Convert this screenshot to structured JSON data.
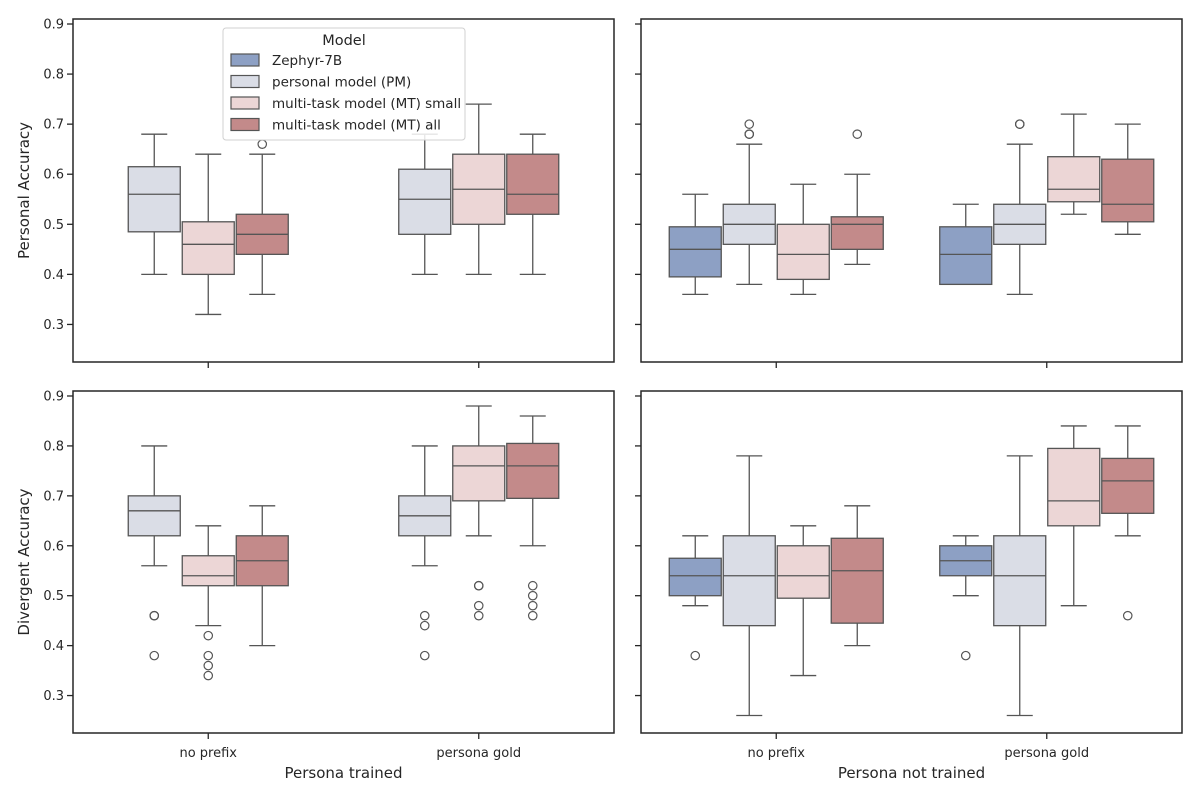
{
  "chart_data": {
    "type": "box",
    "legend": {
      "title": "Model",
      "placement": "upper-center of top-left panel",
      "entries": [
        {
          "name": "Zephyr-7B",
          "color": "#8da0c4"
        },
        {
          "name": "personal model (PM)",
          "color": "#dadde6"
        },
        {
          "name": "multi-task model (MT) small",
          "color": "#ecd6d6"
        },
        {
          "name": "multi-task model (MT) all",
          "color": "#c38a8a"
        }
      ]
    },
    "categories": [
      "no prefix",
      "persona gold"
    ],
    "col_labels": [
      "Persona trained",
      "Persona not trained"
    ],
    "row_labels": [
      "Personal Accuracy",
      "Divergent Accuracy"
    ],
    "y_ticks": [
      "0.3",
      "0.4",
      "0.5",
      "0.6",
      "0.7",
      "0.8",
      "0.9"
    ],
    "ylim": [
      0.225,
      0.91
    ],
    "style": {
      "line": "#555555",
      "frame": "#262626"
    },
    "panels": [
      {
        "row": 0,
        "col": 0,
        "groups": [
          {
            "category": "no prefix",
            "boxes": [
              {
                "model": 1,
                "q1": 0.485,
                "med": 0.56,
                "q3": 0.615,
                "wlo": 0.4,
                "whi": 0.68,
                "out": []
              },
              {
                "model": 2,
                "q1": 0.4,
                "med": 0.46,
                "q3": 0.505,
                "wlo": 0.32,
                "whi": 0.64,
                "out": []
              },
              {
                "model": 3,
                "q1": 0.44,
                "med": 0.48,
                "q3": 0.52,
                "wlo": 0.36,
                "whi": 0.64,
                "out": [
                  0.66
                ]
              }
            ]
          },
          {
            "category": "persona gold",
            "boxes": [
              {
                "model": 1,
                "q1": 0.48,
                "med": 0.55,
                "q3": 0.61,
                "wlo": 0.4,
                "whi": 0.68,
                "out": []
              },
              {
                "model": 2,
                "q1": 0.5,
                "med": 0.57,
                "q3": 0.64,
                "wlo": 0.4,
                "whi": 0.74,
                "out": []
              },
              {
                "model": 3,
                "q1": 0.52,
                "med": 0.56,
                "q3": 0.64,
                "wlo": 0.4,
                "whi": 0.68,
                "out": []
              }
            ]
          }
        ]
      },
      {
        "row": 0,
        "col": 1,
        "groups": [
          {
            "category": "no prefix",
            "boxes": [
              {
                "model": 0,
                "q1": 0.395,
                "med": 0.45,
                "q3": 0.495,
                "wlo": 0.36,
                "whi": 0.56,
                "out": []
              },
              {
                "model": 1,
                "q1": 0.46,
                "med": 0.5,
                "q3": 0.54,
                "wlo": 0.38,
                "whi": 0.66,
                "out": [
                  0.68,
                  0.68,
                  0.7
                ]
              },
              {
                "model": 2,
                "q1": 0.39,
                "med": 0.44,
                "q3": 0.5,
                "wlo": 0.36,
                "whi": 0.58,
                "out": []
              },
              {
                "model": 3,
                "q1": 0.45,
                "med": 0.5,
                "q3": 0.515,
                "wlo": 0.42,
                "whi": 0.6,
                "out": [
                  0.68
                ]
              }
            ]
          },
          {
            "category": "persona gold",
            "boxes": [
              {
                "model": 0,
                "q1": 0.38,
                "med": 0.44,
                "q3": 0.495,
                "wlo": 0.38,
                "whi": 0.54,
                "out": []
              },
              {
                "model": 1,
                "q1": 0.46,
                "med": 0.5,
                "q3": 0.54,
                "wlo": 0.36,
                "whi": 0.66,
                "out": [
                  0.7,
                  0.7
                ]
              },
              {
                "model": 2,
                "q1": 0.545,
                "med": 0.57,
                "q3": 0.635,
                "wlo": 0.52,
                "whi": 0.72,
                "out": []
              },
              {
                "model": 3,
                "q1": 0.505,
                "med": 0.54,
                "q3": 0.63,
                "wlo": 0.48,
                "whi": 0.7,
                "out": []
              }
            ]
          }
        ]
      },
      {
        "row": 1,
        "col": 0,
        "groups": [
          {
            "category": "no prefix",
            "boxes": [
              {
                "model": 1,
                "q1": 0.62,
                "med": 0.67,
                "q3": 0.7,
                "wlo": 0.56,
                "whi": 0.8,
                "out": [
                  0.46,
                  0.46,
                  0.38
                ]
              },
              {
                "model": 2,
                "q1": 0.52,
                "med": 0.54,
                "q3": 0.58,
                "wlo": 0.44,
                "whi": 0.64,
                "out": [
                  0.42,
                  0.38,
                  0.36,
                  0.34
                ]
              },
              {
                "model": 3,
                "q1": 0.52,
                "med": 0.57,
                "q3": 0.62,
                "wlo": 0.4,
                "whi": 0.68,
                "out": []
              }
            ]
          },
          {
            "category": "persona gold",
            "boxes": [
              {
                "model": 1,
                "q1": 0.62,
                "med": 0.66,
                "q3": 0.7,
                "wlo": 0.56,
                "whi": 0.8,
                "out": [
                  0.46,
                  0.44,
                  0.38
                ]
              },
              {
                "model": 2,
                "q1": 0.69,
                "med": 0.76,
                "q3": 0.8,
                "wlo": 0.62,
                "whi": 0.88,
                "out": [
                  0.52,
                  0.52,
                  0.48,
                  0.46
                ]
              },
              {
                "model": 3,
                "q1": 0.695,
                "med": 0.76,
                "q3": 0.805,
                "wlo": 0.6,
                "whi": 0.86,
                "out": [
                  0.52,
                  0.5,
                  0.48,
                  0.46
                ]
              }
            ]
          }
        ]
      },
      {
        "row": 1,
        "col": 1,
        "groups": [
          {
            "category": "no prefix",
            "boxes": [
              {
                "model": 0,
                "q1": 0.5,
                "med": 0.54,
                "q3": 0.575,
                "wlo": 0.48,
                "whi": 0.62,
                "out": [
                  0.38
                ]
              },
              {
                "model": 1,
                "q1": 0.44,
                "med": 0.54,
                "q3": 0.62,
                "wlo": 0.26,
                "whi": 0.78,
                "out": []
              },
              {
                "model": 2,
                "q1": 0.495,
                "med": 0.54,
                "q3": 0.6,
                "wlo": 0.34,
                "whi": 0.64,
                "out": []
              },
              {
                "model": 3,
                "q1": 0.445,
                "med": 0.55,
                "q3": 0.615,
                "wlo": 0.4,
                "whi": 0.68,
                "out": []
              }
            ]
          },
          {
            "category": "persona gold",
            "boxes": [
              {
                "model": 0,
                "q1": 0.54,
                "med": 0.57,
                "q3": 0.6,
                "wlo": 0.5,
                "whi": 0.62,
                "out": [
                  0.38
                ]
              },
              {
                "model": 1,
                "q1": 0.44,
                "med": 0.54,
                "q3": 0.62,
                "wlo": 0.26,
                "whi": 0.78,
                "out": []
              },
              {
                "model": 2,
                "q1": 0.64,
                "med": 0.69,
                "q3": 0.795,
                "wlo": 0.48,
                "whi": 0.84,
                "out": []
              },
              {
                "model": 3,
                "q1": 0.665,
                "med": 0.73,
                "q3": 0.775,
                "wlo": 0.62,
                "whi": 0.84,
                "out": [
                  0.46
                ]
              }
            ]
          }
        ]
      }
    ]
  }
}
